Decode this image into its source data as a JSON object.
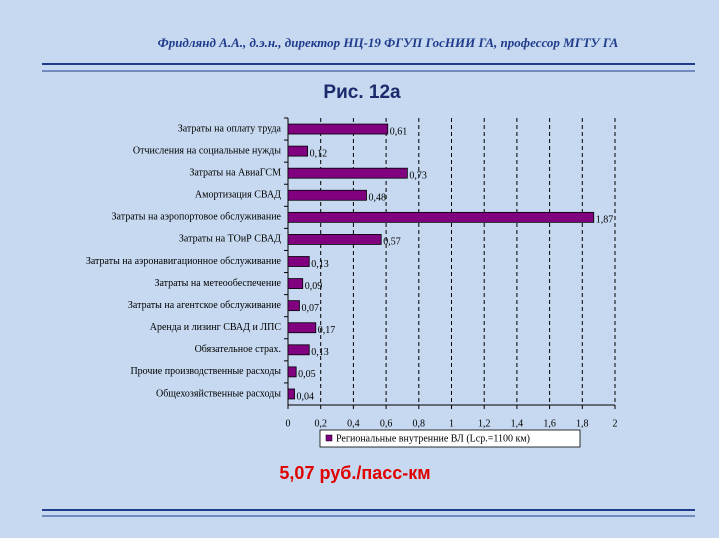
{
  "header": "Фридлянд А.А., д.э.н., директор  НЦ-19 ФГУП ГосНИИ ГА, профессор МГТУ ГА",
  "chart_data": {
    "type": "hbar",
    "title": "Рис. 12а",
    "categories": [
      "Затраты на оплату труда",
      "Отчисления на социальные нужды",
      "Затраты на АвиаГСМ",
      "Амортизация СВАД",
      "Затраты на аэропортовое обслуживание",
      "Затраты на ТОиР СВАД",
      "Затраты на аэронавигационное обслуживание",
      "Затраты на метеообеспечение",
      "Затраты на агентское обслуживание",
      "Аренда и лизинг СВАД и ЛПС",
      "Обязательное страх.",
      "Прочие производственные расходы",
      "Общехозяйственные расходы"
    ],
    "series": [
      {
        "name": "Региональные внутренние ВЛ (Lср.=1100 км)",
        "color": "#800080",
        "values": [
          0.61,
          0.12,
          0.73,
          0.48,
          1.87,
          0.57,
          0.13,
          0.09,
          0.07,
          0.17,
          0.13,
          0.05,
          0.04
        ],
        "value_labels": [
          "0,61",
          "0,12",
          "0,73",
          "0,48",
          "1,87",
          "0,57",
          "0,13",
          "0,09",
          "0,07",
          "0,17",
          "0,13",
          "0,05",
          "0,04"
        ]
      }
    ],
    "xlim": [
      0,
      2
    ],
    "xticks": [
      0,
      {
        "value": 0.2,
        "label": "0,2"
      },
      {
        "value": 0.4,
        "label": "0,4"
      },
      {
        "value": 0.6,
        "label": "0,6"
      },
      {
        "value": 0.8,
        "label": "0,8"
      },
      1,
      {
        "value": 1.2,
        "label": "1,2"
      },
      {
        "value": 1.4,
        "label": "1,4"
      },
      {
        "value": 1.6,
        "label": "1,6"
      },
      {
        "value": 1.8,
        "label": "1,8"
      },
      2
    ],
    "grid": true,
    "legend": "bottom",
    "annotations": [
      "5,07 руб./пасс-км"
    ]
  }
}
